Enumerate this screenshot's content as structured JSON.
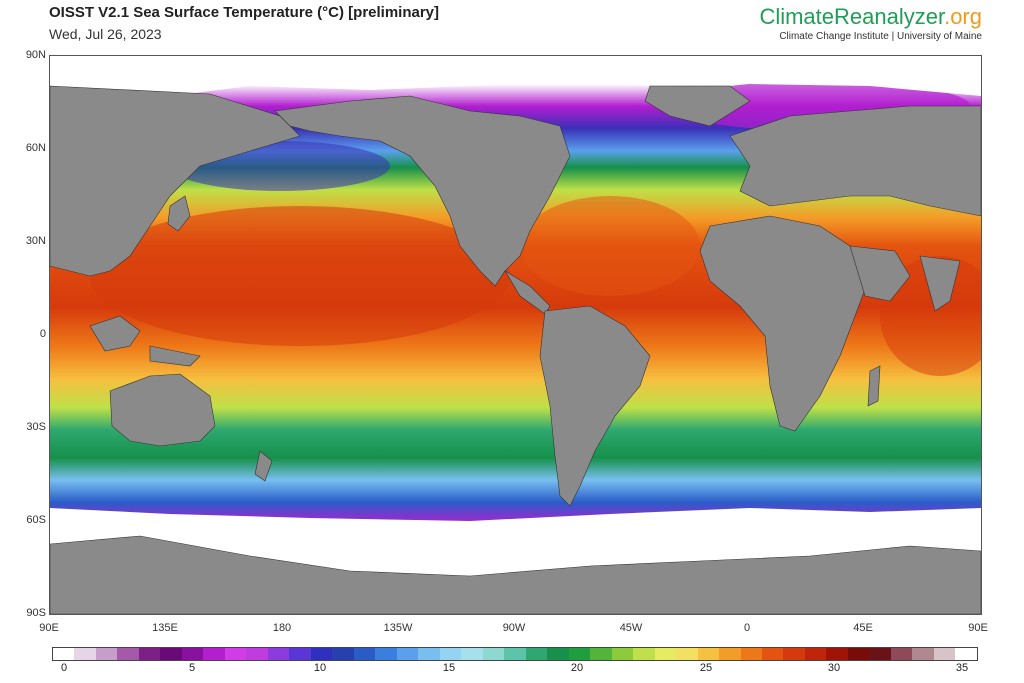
{
  "header": {
    "title": "OISST V2.1 Sea Surface Temperature (°C) [preliminary]",
    "date": "Wed, Jul 26, 2023",
    "brand_main": "ClimateReanalyzer",
    "brand_tld": ".org",
    "brand_sub": "Climate Change Institute | University of Maine"
  },
  "axes": {
    "lat_labels": [
      "90N",
      "60N",
      "30N",
      "0",
      "30S",
      "60S",
      "90S"
    ],
    "lon_labels": [
      "90E",
      "135E",
      "180",
      "135W",
      "90W",
      "45W",
      "0",
      "45E",
      "90E"
    ]
  },
  "colorbar": {
    "ticks": [
      "0",
      "5",
      "10",
      "15",
      "20",
      "25",
      "30",
      "35"
    ],
    "colors": [
      "#ffffff",
      "#e6d5e6",
      "#c79ec9",
      "#a45aa8",
      "#7d1f87",
      "#6a0a78",
      "#8a10a0",
      "#b21ed0",
      "#d23be8",
      "#c03ce0",
      "#8d3ae0",
      "#5a36d8",
      "#3030c0",
      "#2640b0",
      "#2a5cc8",
      "#3a7ee0",
      "#5aa0ec",
      "#78bff0",
      "#95d3f2",
      "#a6e0ec",
      "#8ed8d0",
      "#5cc4a8",
      "#2ea870",
      "#16904a",
      "#1f9e3e",
      "#52b438",
      "#8ccc3c",
      "#bfe048",
      "#e6ec60",
      "#f4e060",
      "#f6c040",
      "#f49c28",
      "#ee7818",
      "#e45410",
      "#d63a0c",
      "#c0240a",
      "#a01408",
      "#7a0c08",
      "#6a1218",
      "#8e4a58",
      "#b08890",
      "#d8c4c8",
      "#ffffff"
    ]
  },
  "map": {
    "description_colors": {
      "land": "#8a8a8a",
      "ice": "#ffffff"
    }
  }
}
